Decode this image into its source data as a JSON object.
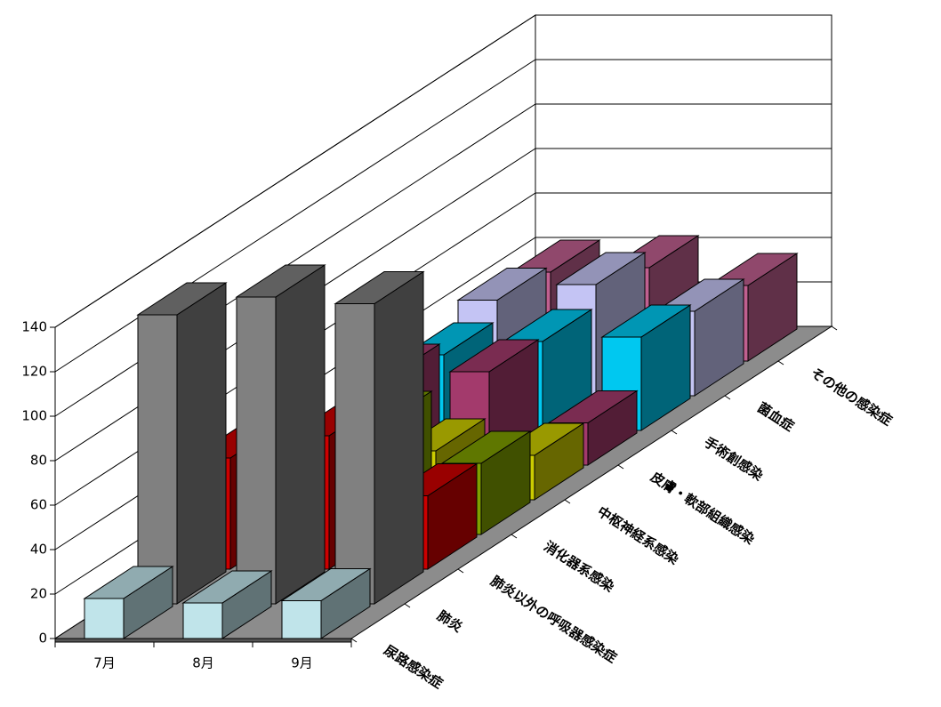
{
  "chart_data": {
    "type": "bar3d",
    "categories": [
      "7月",
      "8月",
      "9月"
    ],
    "series": [
      {
        "name": "尿路感染症",
        "color": "#c0e4ea",
        "values": [
          18,
          16,
          17
        ]
      },
      {
        "name": "肺炎",
        "color": "#808080",
        "values": [
          130,
          138,
          135
        ]
      },
      {
        "name": "肺炎以外の呼吸器感染症",
        "color": "#cc0000",
        "values": [
          50,
          60,
          33
        ]
      },
      {
        "name": "消化器系感染",
        "color": "#7f9f00",
        "values": [
          40,
          50,
          32
        ]
      },
      {
        "name": "中枢神経系感染",
        "color": "#cccc00",
        "values": [
          12,
          22,
          20
        ]
      },
      {
        "name": "皮膚・軟部組織感染",
        "color": "#a33a6c",
        "values": [
          40,
          42,
          19
        ]
      },
      {
        "name": "手術創感染",
        "color": "#00c8f0",
        "values": [
          34,
          40,
          42
        ]
      },
      {
        "name": "菌血症",
        "color": "#c4c4f4",
        "values": [
          43,
          50,
          38
        ]
      },
      {
        "name": "その他の感染症",
        "color": "#c06090",
        "values": [
          40,
          42,
          34
        ]
      }
    ],
    "ylim": [
      0,
      140
    ],
    "yticks": [
      0,
      20,
      40,
      60,
      80,
      100,
      120,
      140
    ],
    "grid": true
  }
}
